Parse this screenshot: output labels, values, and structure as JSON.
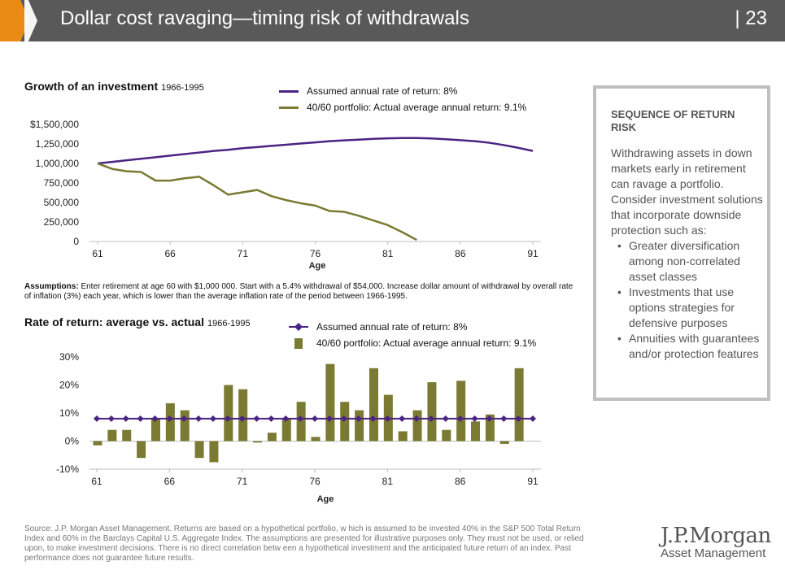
{
  "header": {
    "title": "Dollar cost ravaging—timing risk of withdrawals",
    "page_number": "| 23"
  },
  "chart_top": {
    "title": "Growth of an investment",
    "title_years": "1966-1995",
    "legend": [
      {
        "label": "Assumed annual rate of return: 8%",
        "color": "#4b2483"
      },
      {
        "label": "40/60 portfolio: Actual average annual return: 9.1%",
        "color": "#7a7a32"
      }
    ]
  },
  "assumptions": {
    "label": "Assumptions:",
    "text": "Enter retirement at age 60 with $1,000 000. Start with a 5.4% withdrawal of $54,000. Increase dollar amount of withdrawal by overall rate of inflation (3%) each year, which is lower than the average inflation rate of the period between 1966-1995."
  },
  "chart_bottom": {
    "title": "Rate of return: average vs. actual",
    "title_years": "1966-1995",
    "legend": [
      {
        "label": "Assumed annual rate of return: 8%",
        "color": "#4b2483"
      },
      {
        "label": "40/60 portfolio: Actual average annual return: 9.1%",
        "color": "#7a7a32"
      }
    ]
  },
  "sidebar": {
    "heading": "SEQUENCE OF RETURN RISK",
    "body": "Withdrawing assets in down markets early in retirement can ravage a portfolio. Consider investment solutions that incorporate downside protection such as:",
    "bullets": [
      "Greater diversification among non-correlated asset classes",
      "Investments that use options strategies for defensive purposes",
      "Annuities with guarantees and/or protection features"
    ]
  },
  "footer": {
    "source": "Source: J.P. Morgan Asset Management. Returns are based on a hypothetical portfolio, w hich is assumed to be invested 40% in the S&P 500 Total Return Index and 60% in the Barclays Capital U.S. Aggregate Index. The assumptions are presented for illustrative purposes only. They must not be used, or relied upon, to make investment decisions. There is no direct correlation betw een a hypothetical investment and the anticipated future return of an index. Past performance does not guarantee future results.",
    "logo_main": "J.P.Morgan",
    "logo_sub": "Asset Management"
  },
  "colors": {
    "header_bg": "#595959",
    "accent_orange": "#e98a15",
    "assumed": "#4b2483",
    "actual": "#7a7a32",
    "axis": "#bfbfbf"
  },
  "chart_data": [
    {
      "type": "line",
      "title": "Growth of an investment 1966-1995",
      "xlabel": "Age",
      "ylabel": "",
      "x": [
        61,
        62,
        63,
        64,
        65,
        66,
        67,
        68,
        69,
        70,
        71,
        72,
        73,
        74,
        75,
        76,
        77,
        78,
        79,
        80,
        81,
        82,
        83,
        84,
        85,
        86,
        87,
        88,
        89,
        90,
        91
      ],
      "xlim": [
        61,
        91
      ],
      "xticks": [
        61,
        66,
        71,
        76,
        81,
        86,
        91
      ],
      "ylim": [
        0,
        1500000
      ],
      "yticks": [
        0,
        250000,
        500000,
        750000,
        1000000,
        1250000,
        1500000
      ],
      "ytick_labels": [
        "0",
        "250,000",
        "500,000",
        "750,000",
        "1,000,000",
        "1,250,000",
        "$1,500,000"
      ],
      "series": [
        {
          "name": "Assumed annual rate of return: 8%",
          "values": [
            1000000,
            1020000,
            1040000,
            1060000,
            1080000,
            1100000,
            1120000,
            1140000,
            1160000,
            1175000,
            1195000,
            1210000,
            1225000,
            1240000,
            1255000,
            1270000,
            1285000,
            1295000,
            1305000,
            1315000,
            1322000,
            1325000,
            1325000,
            1320000,
            1310000,
            1298000,
            1285000,
            1265000,
            1235000,
            1200000,
            1160000
          ]
        },
        {
          "name": "40/60 portfolio: Actual average annual return: 9.1%",
          "values": [
            1000000,
            930000,
            900000,
            890000,
            780000,
            780000,
            810000,
            830000,
            720000,
            600000,
            630000,
            660000,
            580000,
            530000,
            490000,
            460000,
            390000,
            380000,
            330000,
            270000,
            210000,
            120000,
            20000,
            null,
            null,
            null,
            null,
            null,
            null,
            null,
            null
          ]
        }
      ]
    },
    {
      "type": "bar",
      "title": "Rate of return: average vs. actual 1966-1995",
      "xlabel": "Age",
      "ylabel": "",
      "x": [
        61,
        62,
        63,
        64,
        65,
        66,
        67,
        68,
        69,
        70,
        71,
        72,
        73,
        74,
        75,
        76,
        77,
        78,
        79,
        80,
        81,
        82,
        83,
        84,
        85,
        86,
        87,
        88,
        89,
        90,
        91
      ],
      "xlim": [
        61,
        91
      ],
      "xticks": [
        61,
        66,
        71,
        76,
        81,
        86,
        91
      ],
      "ylim": [
        -10,
        30
      ],
      "yticks": [
        -10,
        0,
        10,
        20,
        30
      ],
      "ytick_labels": [
        "-10%",
        "0%",
        "10%",
        "20%",
        "30%"
      ],
      "series": [
        {
          "name": "Assumed annual rate of return: 8%",
          "kind": "line",
          "values": [
            8,
            8,
            8,
            8,
            8,
            8,
            8,
            8,
            8,
            8,
            8,
            8,
            8,
            8,
            8,
            8,
            8,
            8,
            8,
            8,
            8,
            8,
            8,
            8,
            8,
            8,
            8,
            8,
            8,
            8,
            8
          ]
        },
        {
          "name": "40/60 portfolio: Actual average annual return: 9.1%",
          "kind": "bar",
          "values": [
            -1.5,
            4,
            4,
            -6,
            8,
            13.5,
            11,
            -6,
            -7.5,
            20,
            18.5,
            -0.5,
            3,
            8,
            14,
            1.5,
            27.5,
            14,
            11,
            26,
            16.5,
            3.5,
            11,
            21,
            4,
            21.5,
            7,
            9.5,
            -1,
            26,
            null
          ]
        }
      ]
    }
  ]
}
